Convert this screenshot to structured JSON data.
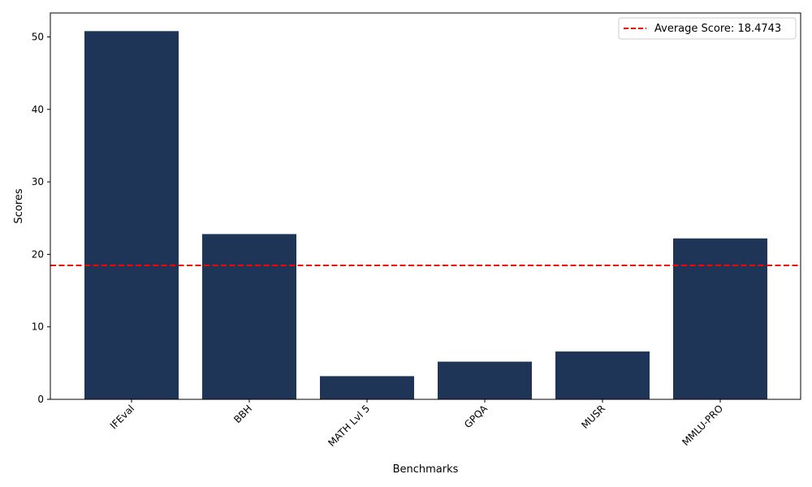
{
  "chart_data": {
    "type": "bar",
    "categories": [
      "IFEval",
      "BBH",
      "MATH Lvl 5",
      "GPQA",
      "MUSR",
      "MMLU-PRO"
    ],
    "values": [
      50.8,
      22.8,
      3.2,
      5.2,
      6.6,
      22.2
    ],
    "bar_color": "#1f3557",
    "xlabel": "Benchmarks",
    "ylabel": "Scores",
    "ylim": [
      0,
      53.3
    ],
    "yticks": [
      0,
      10,
      20,
      30,
      40,
      50
    ],
    "grid": false,
    "reference_line": {
      "value": 18.4743,
      "label": "Average Score: 18.4743",
      "color": "#ff0000",
      "style": "dashed"
    },
    "legend": {
      "placement": "top-right"
    }
  }
}
